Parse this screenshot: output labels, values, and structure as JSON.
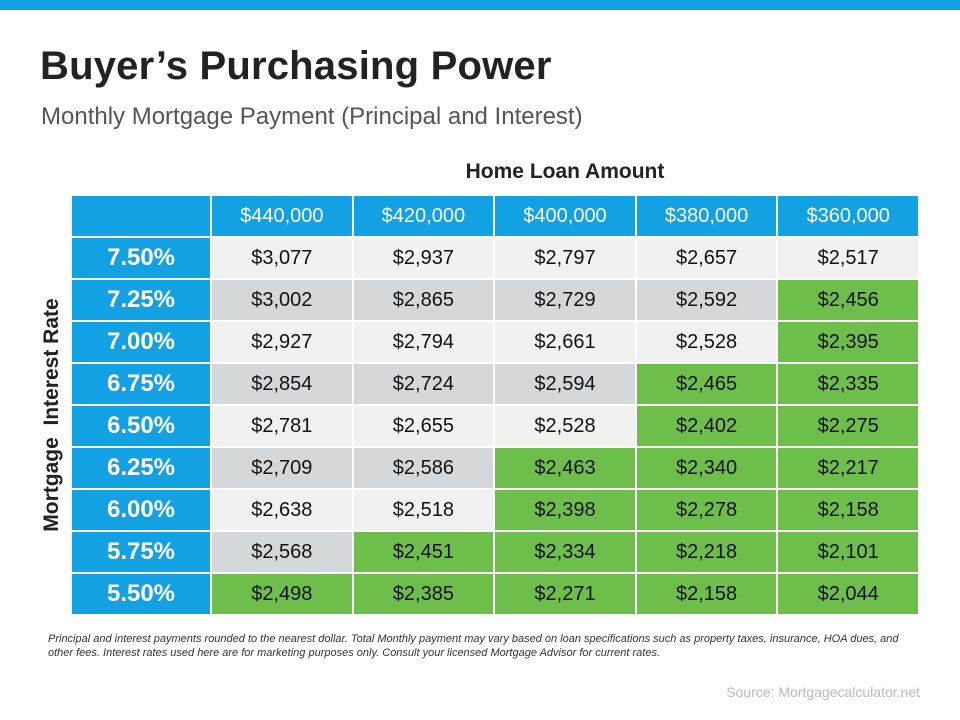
{
  "header": {
    "title": "Buyer’s Purchasing Power",
    "subtitle": "Monthly Mortgage Payment (Principal and Interest)"
  },
  "chart_data": {
    "type": "table",
    "xlabel": "Home Loan Amount",
    "ylabel": "Mortgage  Interest Rate",
    "columns": [
      "$440,000",
      "$420,000",
      "$400,000",
      "$380,000",
      "$360,000"
    ],
    "rows": [
      {
        "rate": "7.50%",
        "values": [
          "$3,077",
          "$2,937",
          "$2,797",
          "$2,657",
          "$2,517"
        ],
        "green_from": 5
      },
      {
        "rate": "7.25%",
        "values": [
          "$3,002",
          "$2,865",
          "$2,729",
          "$2,592",
          "$2,456"
        ],
        "green_from": 4
      },
      {
        "rate": "7.00%",
        "values": [
          "$2,927",
          "$2,794",
          "$2,661",
          "$2,528",
          "$2,395"
        ],
        "green_from": 4
      },
      {
        "rate": "6.75%",
        "values": [
          "$2,854",
          "$2,724",
          "$2,594",
          "$2,465",
          "$2,335"
        ],
        "green_from": 3
      },
      {
        "rate": "6.50%",
        "values": [
          "$2,781",
          "$2,655",
          "$2,528",
          "$2,402",
          "$2,275"
        ],
        "green_from": 3
      },
      {
        "rate": "6.25%",
        "values": [
          "$2,709",
          "$2,586",
          "$2,463",
          "$2,340",
          "$2,217"
        ],
        "green_from": 2
      },
      {
        "rate": "6.00%",
        "values": [
          "$2,638",
          "$2,518",
          "$2,398",
          "$2,278",
          "$2,158"
        ],
        "green_from": 2
      },
      {
        "rate": "5.75%",
        "values": [
          "$2,568",
          "$2,451",
          "$2,334",
          "$2,218",
          "$2,101"
        ],
        "green_from": 1
      },
      {
        "rate": "5.50%",
        "values": [
          "$2,498",
          "$2,385",
          "$2,271",
          "$2,158",
          "$2,044"
        ],
        "green_from": 0
      }
    ],
    "colors": {
      "header": "#12a2e3",
      "light": "#f1f1f1",
      "dark": "#d5d8da",
      "green": "#6ebe4c"
    }
  },
  "footnote": "Principal and interest payments rounded to the nearest dollar. Total Monthly payment may vary based on loan specifications such as property taxes, insurance, HOA dues, and other fees. Interest rates used here are for marketing purposes only. Consult your licensed Mortgage Advisor for current rates.",
  "source": "Source: Mortgagecalculator.net"
}
